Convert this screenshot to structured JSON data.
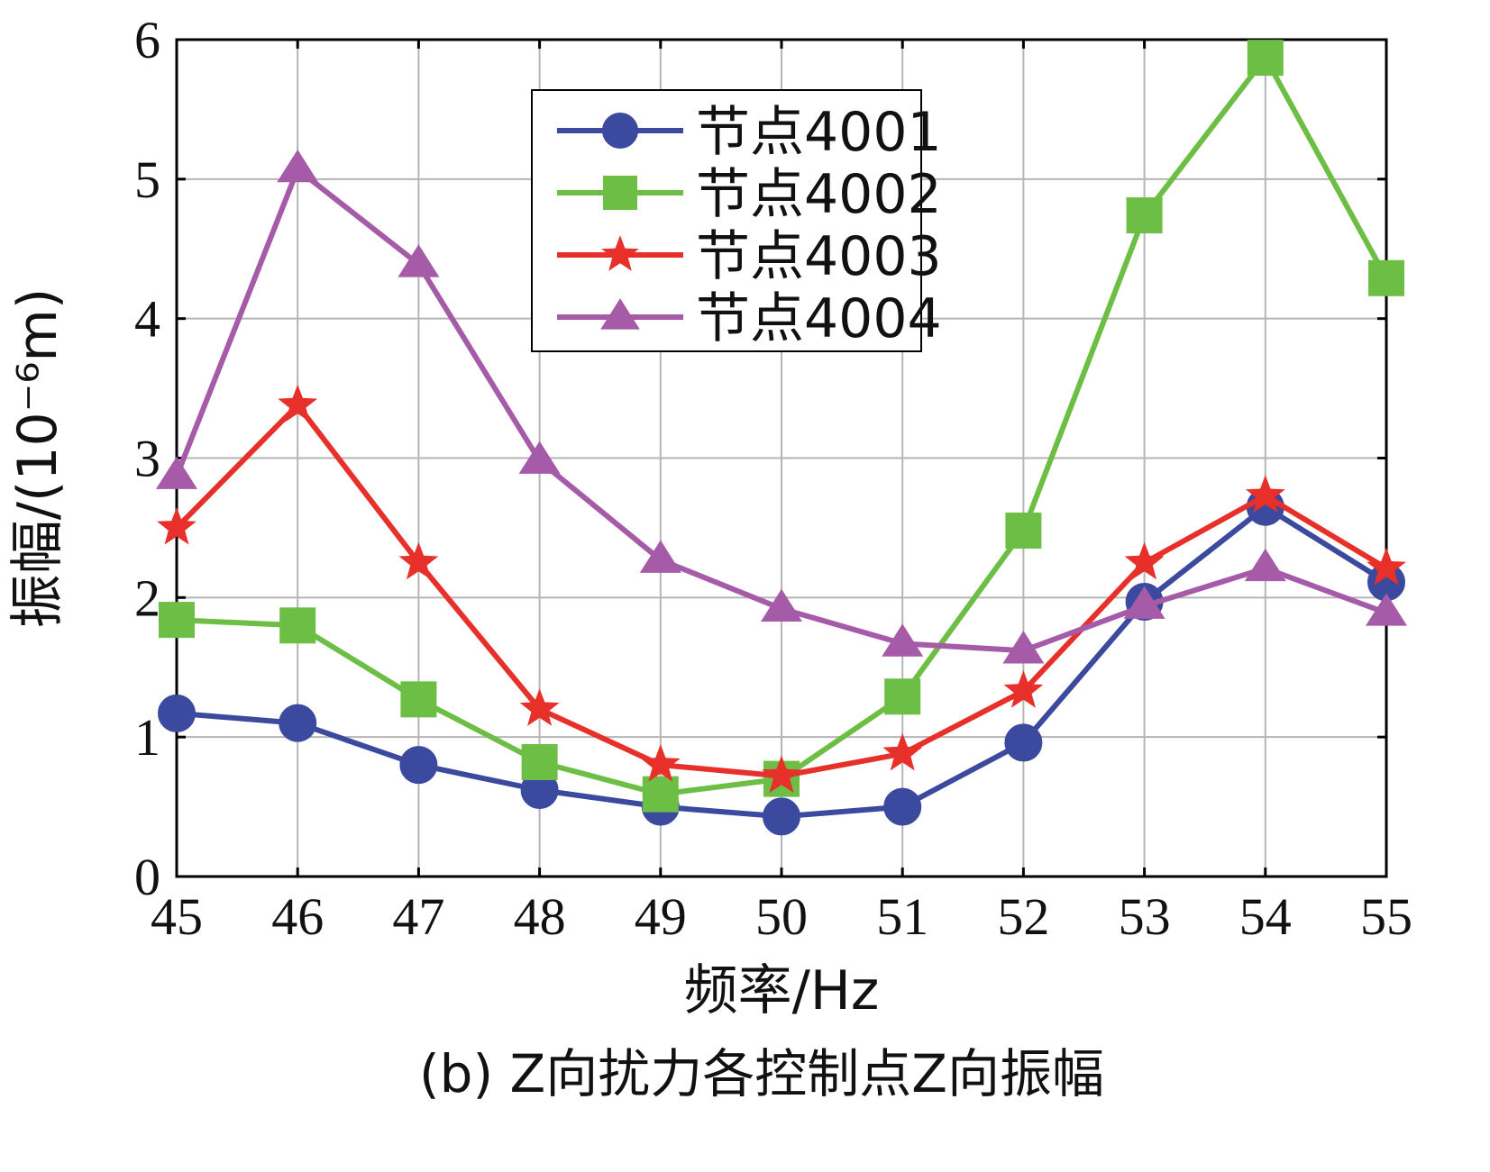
{
  "chart_data": {
    "type": "line",
    "title": "",
    "caption": "(b) Z向扰力各控制点Z向振幅",
    "xlabel": "频率/Hz",
    "ylabel": "振幅/(10⁻⁶m)",
    "x": [
      45,
      46,
      47,
      48,
      49,
      50,
      51,
      52,
      53,
      54,
      55
    ],
    "xlim": [
      45,
      55
    ],
    "ylim": [
      0,
      6
    ],
    "yticks": [
      0,
      1,
      2,
      3,
      4,
      5,
      6
    ],
    "grid": true,
    "legend_position": "top-center",
    "series": [
      {
        "name": "节点4001",
        "marker": "circle",
        "color": "#3B4A9E",
        "values": [
          1.17,
          1.1,
          0.8,
          0.62,
          0.5,
          0.43,
          0.5,
          0.96,
          1.97,
          2.65,
          2.11
        ]
      },
      {
        "name": "节点4002",
        "marker": "square",
        "color": "#6DBE45",
        "values": [
          1.84,
          1.8,
          1.27,
          0.82,
          0.59,
          0.7,
          1.29,
          2.48,
          4.74,
          5.87,
          4.29
        ]
      },
      {
        "name": "节点4003",
        "marker": "star",
        "color": "#E8302A",
        "values": [
          2.5,
          3.38,
          2.25,
          1.2,
          0.8,
          0.72,
          0.88,
          1.33,
          2.25,
          2.73,
          2.21
        ]
      },
      {
        "name": "节点4004",
        "marker": "triangle",
        "color": "#A55BA8",
        "values": [
          2.87,
          5.07,
          4.39,
          2.98,
          2.27,
          1.92,
          1.67,
          1.62,
          1.94,
          2.21,
          1.89
        ]
      }
    ]
  }
}
